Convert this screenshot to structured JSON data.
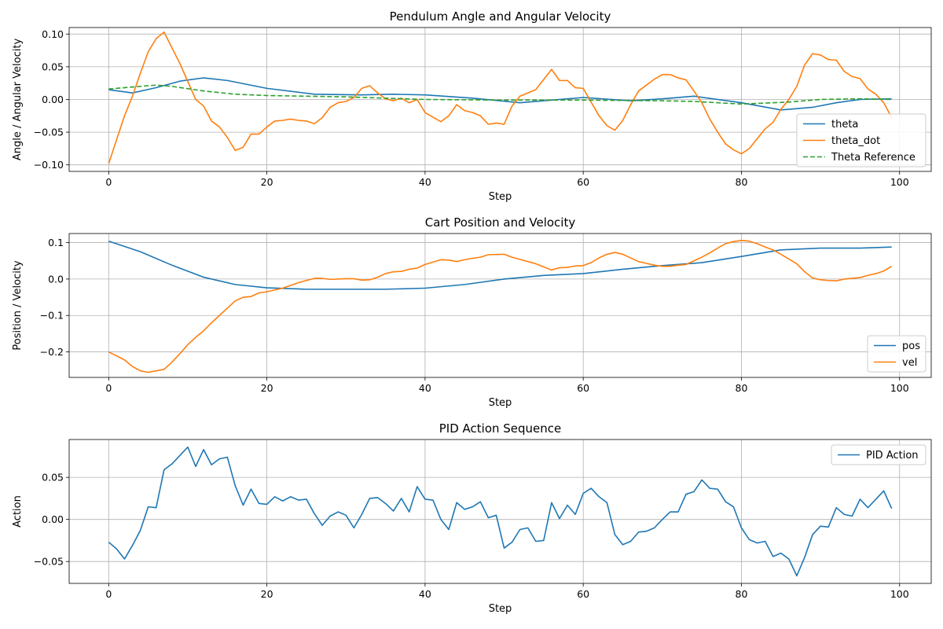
{
  "chart_data": [
    {
      "type": "line",
      "title": "Pendulum Angle and Angular Velocity",
      "xlabel": "Step",
      "ylabel": "Angle / Angular Velocity",
      "xlim": [
        -5,
        104
      ],
      "ylim": [
        -0.11,
        0.11
      ],
      "xticks": [
        0,
        20,
        40,
        60,
        80,
        100
      ],
      "yticks": [
        -0.1,
        -0.05,
        0.0,
        0.05,
        0.1
      ],
      "ytick_labels": [
        "−0.10",
        "−0.05",
        "0.00",
        "0.05",
        "0.10"
      ],
      "grid": true,
      "legend": "lower-right",
      "series": [
        {
          "name": "theta",
          "color": "#1f77b4",
          "dash": "solid",
          "x": [
            0,
            3,
            6,
            9,
            12,
            15,
            20,
            26,
            32,
            36,
            40,
            46,
            52,
            60,
            66,
            70,
            74,
            80,
            85,
            89,
            92,
            95,
            99
          ],
          "y": [
            0.015,
            0.01,
            0.018,
            0.028,
            0.033,
            0.029,
            0.017,
            0.008,
            0.007,
            0.008,
            0.007,
            0.002,
            -0.005,
            0.003,
            -0.002,
            0.001,
            0.005,
            -0.005,
            -0.016,
            -0.012,
            -0.005,
            0.0,
            0.001
          ]
        },
        {
          "name": "theta_dot",
          "color": "#ff7f0e",
          "dash": "solid",
          "x": [
            0,
            2,
            3,
            4,
            5,
            6,
            7,
            9,
            11,
            12,
            13,
            14,
            15,
            16,
            17,
            18,
            19,
            20,
            21,
            22,
            23,
            24,
            25,
            26,
            27,
            28,
            29,
            30,
            31,
            32,
            33,
            34,
            35,
            36,
            37,
            38,
            39,
            40,
            42,
            43,
            44,
            45,
            46,
            47,
            48,
            49,
            50,
            51,
            52,
            54,
            56,
            57,
            58,
            59,
            60,
            62,
            63,
            64,
            65,
            66,
            67,
            68,
            69,
            70,
            71,
            72,
            73,
            74,
            75,
            76,
            77,
            78,
            79,
            80,
            81,
            82,
            83,
            84,
            85,
            86,
            87,
            88,
            89,
            90,
            91,
            92,
            93,
            94,
            95,
            96,
            97,
            98,
            99
          ],
          "y": [
            -0.098,
            -0.025,
            0.005,
            0.04,
            0.073,
            0.093,
            0.103,
            0.055,
            0.0,
            -0.01,
            -0.033,
            -0.042,
            -0.058,
            -0.078,
            -0.073,
            -0.053,
            -0.053,
            -0.042,
            -0.033,
            -0.032,
            -0.03,
            -0.032,
            -0.033,
            -0.037,
            -0.028,
            -0.012,
            -0.005,
            -0.003,
            0.003,
            0.017,
            0.021,
            0.01,
            0.001,
            -0.002,
            0.002,
            -0.005,
            0.0,
            -0.02,
            -0.034,
            -0.025,
            -0.008,
            -0.017,
            -0.02,
            -0.025,
            -0.038,
            -0.036,
            -0.038,
            -0.01,
            0.005,
            0.015,
            0.046,
            0.029,
            0.029,
            0.018,
            0.017,
            -0.025,
            -0.04,
            -0.047,
            -0.032,
            -0.008,
            0.013,
            0.022,
            0.031,
            0.038,
            0.038,
            0.033,
            0.03,
            0.013,
            -0.005,
            -0.03,
            -0.05,
            -0.068,
            -0.077,
            -0.083,
            -0.075,
            -0.06,
            -0.045,
            -0.035,
            -0.015,
            0.0,
            0.02,
            0.053,
            0.07,
            0.068,
            0.061,
            0.06,
            0.043,
            0.035,
            0.032,
            0.016,
            0.008,
            -0.005,
            -0.028
          ]
        },
        {
          "name": "Theta Reference",
          "color": "#2ca02c",
          "dash": "dashed",
          "x": [
            0,
            4,
            6,
            8,
            12,
            16,
            20,
            30,
            40,
            50,
            60,
            70,
            74,
            80,
            86,
            90,
            95,
            99
          ],
          "y": [
            0.016,
            0.02,
            0.022,
            0.02,
            0.013,
            0.008,
            0.006,
            0.004,
            0.0,
            -0.001,
            -0.001,
            -0.002,
            -0.003,
            -0.007,
            -0.004,
            0.0,
            0.001,
            0.0
          ]
        }
      ]
    },
    {
      "type": "line",
      "title": "Cart Position and Velocity",
      "xlabel": "Step",
      "ylabel": "Position / Velocity",
      "xlim": [
        -5,
        104
      ],
      "ylim": [
        -0.27,
        0.125
      ],
      "xticks": [
        0,
        20,
        40,
        60,
        80,
        100
      ],
      "yticks": [
        -0.2,
        -0.1,
        0.0,
        0.1
      ],
      "ytick_labels": [
        "−0.2",
        "−0.1",
        "0.0",
        "0.1"
      ],
      "grid": true,
      "legend": "lower-right",
      "series": [
        {
          "name": "pos",
          "color": "#1f77b4",
          "dash": "solid",
          "x": [
            0,
            4,
            8,
            12,
            16,
            20,
            25,
            30,
            35,
            40,
            45,
            50,
            55,
            60,
            65,
            70,
            75,
            80,
            85,
            90,
            95,
            99
          ],
          "y": [
            0.104,
            0.075,
            0.038,
            0.005,
            -0.015,
            -0.024,
            -0.028,
            -0.028,
            -0.028,
            -0.025,
            -0.015,
            0.0,
            0.01,
            0.015,
            0.027,
            0.037,
            0.045,
            0.062,
            0.08,
            0.085,
            0.085,
            0.088
          ]
        },
        {
          "name": "vel",
          "color": "#ff7f0e",
          "dash": "solid",
          "x": [
            0,
            2,
            3,
            4,
            5,
            6,
            7,
            8,
            9,
            10,
            11,
            12,
            13,
            14,
            15,
            16,
            17,
            18,
            19,
            20,
            22,
            24,
            26,
            27,
            28,
            30,
            31,
            32,
            33,
            34,
            35,
            36,
            37,
            38,
            39,
            40,
            42,
            43,
            44,
            45,
            46,
            47,
            48,
            50,
            51,
            54,
            56,
            57,
            58,
            59,
            60,
            61,
            62,
            63,
            64,
            65,
            66,
            67,
            68,
            69,
            70,
            71,
            72,
            73,
            74,
            75,
            76,
            77,
            78,
            79,
            80,
            81,
            82,
            83,
            84,
            85,
            86,
            87,
            88,
            89,
            90,
            91,
            92,
            93,
            94,
            95,
            96,
            97,
            98,
            99
          ],
          "y": [
            -0.2,
            -0.222,
            -0.24,
            -0.252,
            -0.256,
            -0.252,
            -0.248,
            -0.228,
            -0.205,
            -0.18,
            -0.16,
            -0.142,
            -0.12,
            -0.1,
            -0.08,
            -0.06,
            -0.05,
            -0.048,
            -0.038,
            -0.035,
            -0.025,
            -0.01,
            0.002,
            0.002,
            -0.001,
            0.001,
            0.001,
            -0.003,
            -0.002,
            0.005,
            0.015,
            0.02,
            0.021,
            0.027,
            0.03,
            0.04,
            0.053,
            0.052,
            0.048,
            0.053,
            0.057,
            0.06,
            0.067,
            0.068,
            0.06,
            0.042,
            0.025,
            0.031,
            0.032,
            0.036,
            0.037,
            0.045,
            0.058,
            0.068,
            0.073,
            0.068,
            0.058,
            0.048,
            0.043,
            0.038,
            0.035,
            0.035,
            0.038,
            0.04,
            0.05,
            0.06,
            0.072,
            0.085,
            0.097,
            0.103,
            0.106,
            0.104,
            0.097,
            0.088,
            0.08,
            0.068,
            0.055,
            0.042,
            0.02,
            0.003,
            -0.002,
            -0.004,
            -0.005,
            0.0,
            0.002,
            0.004,
            0.01,
            0.015,
            0.022,
            0.035
          ]
        }
      ]
    },
    {
      "type": "line",
      "title": "PID Action Sequence",
      "xlabel": "Step",
      "ylabel": "Action",
      "xlim": [
        -5,
        104
      ],
      "ylim": [
        -0.076,
        0.095
      ],
      "xticks": [
        0,
        20,
        40,
        60,
        80,
        100
      ],
      "yticks": [
        -0.05,
        0.0,
        0.05
      ],
      "ytick_labels": [
        "−0.05",
        "0.00",
        "0.05"
      ],
      "grid": true,
      "legend": "upper-right",
      "series": [
        {
          "name": "PID Action",
          "color": "#1f77b4",
          "dash": "solid",
          "x": [
            0,
            1,
            2,
            3,
            4,
            5,
            6,
            7,
            8,
            9,
            10,
            11,
            12,
            13,
            14,
            15,
            16,
            17,
            18,
            19,
            20,
            21,
            22,
            23,
            24,
            25,
            26,
            27,
            28,
            29,
            30,
            31,
            32,
            33,
            34,
            35,
            36,
            37,
            38,
            39,
            40,
            41,
            42,
            43,
            44,
            45,
            46,
            47,
            48,
            49,
            50,
            51,
            52,
            53,
            54,
            55,
            56,
            57,
            58,
            59,
            60,
            61,
            62,
            63,
            64,
            65,
            66,
            67,
            68,
            69,
            70,
            71,
            72,
            73,
            74,
            75,
            76,
            77,
            78,
            79,
            80,
            81,
            82,
            83,
            84,
            85,
            86,
            87,
            88,
            89,
            90,
            91,
            92,
            93,
            94,
            95,
            96,
            97,
            98,
            99
          ],
          "y": [
            -0.027,
            -0.035,
            -0.047,
            -0.031,
            -0.013,
            0.015,
            0.014,
            0.059,
            0.066,
            0.076,
            0.086,
            0.063,
            0.083,
            0.065,
            0.072,
            0.074,
            0.04,
            0.017,
            0.036,
            0.019,
            0.018,
            0.027,
            0.022,
            0.027,
            0.023,
            0.024,
            0.007,
            -0.007,
            0.004,
            0.009,
            0.005,
            -0.01,
            0.006,
            0.025,
            0.026,
            0.019,
            0.01,
            0.025,
            0.009,
            0.039,
            0.024,
            0.023,
            0.0,
            -0.012,
            0.02,
            0.012,
            0.015,
            0.021,
            0.002,
            0.005,
            -0.034,
            -0.027,
            -0.012,
            -0.01,
            -0.026,
            -0.025,
            0.02,
            0.001,
            0.017,
            0.006,
            0.031,
            0.037,
            0.027,
            0.02,
            -0.018,
            -0.03,
            -0.026,
            -0.015,
            -0.014,
            -0.01,
            0.0,
            0.009,
            0.009,
            0.03,
            0.033,
            0.047,
            0.037,
            0.036,
            0.021,
            0.015,
            -0.01,
            -0.024,
            -0.028,
            -0.026,
            -0.044,
            -0.04,
            -0.047,
            -0.067,
            -0.045,
            -0.018,
            -0.008,
            -0.009,
            0.014,
            0.006,
            0.004,
            0.024,
            0.014,
            0.024,
            0.034,
            0.013
          ]
        }
      ]
    }
  ]
}
